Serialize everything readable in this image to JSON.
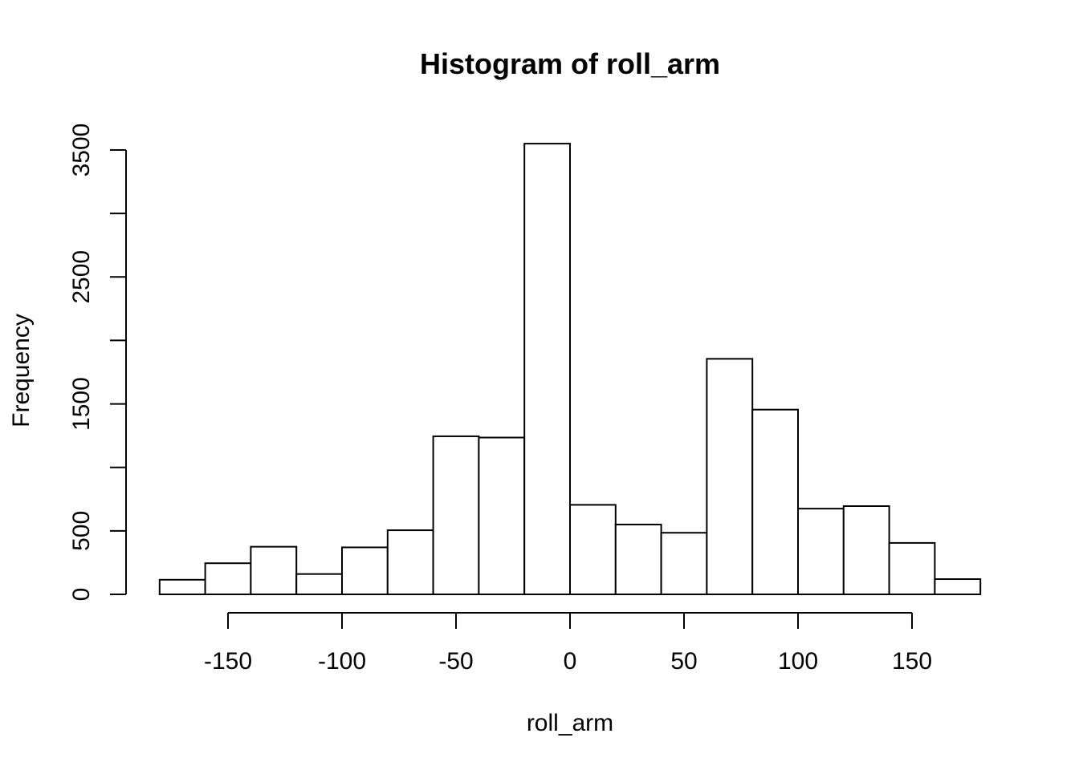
{
  "chart_data": {
    "type": "bar",
    "subtype": "histogram",
    "title": "Histogram of roll_arm",
    "xlabel": "roll_arm",
    "ylabel": "Frequency",
    "bin_edges": [
      -180,
      -160,
      -140,
      -120,
      -100,
      -80,
      -60,
      -40,
      -20,
      0,
      20,
      40,
      60,
      80,
      100,
      120,
      140,
      160,
      180
    ],
    "values": [
      115,
      245,
      375,
      160,
      370,
      505,
      1245,
      1235,
      3550,
      705,
      550,
      485,
      1855,
      1455,
      675,
      695,
      405,
      120
    ],
    "x_ticks": [
      -150,
      -100,
      -50,
      0,
      50,
      100,
      150
    ],
    "y_ticks": [
      0,
      500,
      1000,
      1500,
      2000,
      2500,
      3000,
      3500
    ],
    "y_tick_labels": [
      "0",
      "500",
      "",
      "1500",
      "",
      "2500",
      "",
      "3500"
    ],
    "xlim": [
      -180,
      180
    ],
    "ylim": [
      0,
      3500
    ],
    "grid": false,
    "legend": "none"
  }
}
